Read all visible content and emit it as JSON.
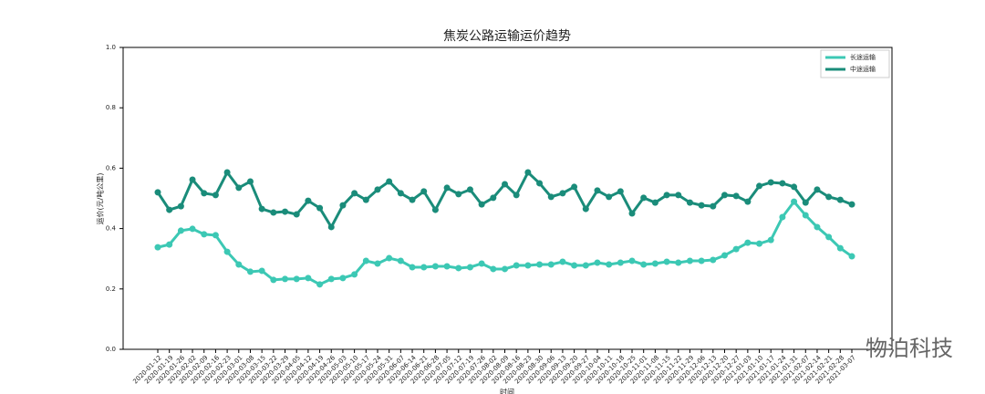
{
  "chart_data": {
    "type": "line",
    "title": "焦炭公路运输运价趋势",
    "ylabel": "运价(元/吨公里)",
    "xlabel": "时间",
    "watermark": "物泊科技",
    "categories": [
      "2020-01-12",
      "2020-01-19",
      "2020-01-26",
      "2020-02-02",
      "2020-02-09",
      "2020-02-16",
      "2020-02-23",
      "2020-03-01",
      "2020-03-08",
      "2020-03-15",
      "2020-03-22",
      "2020-03-29",
      "2020-04-05",
      "2020-04-12",
      "2020-04-19",
      "2020-04-26",
      "2020-05-03",
      "2020-05-10",
      "2020-05-17",
      "2020-05-24",
      "2020-05-31",
      "2020-06-07",
      "2020-06-14",
      "2020-06-21",
      "2020-06-28",
      "2020-07-05",
      "2020-07-12",
      "2020-07-19",
      "2020-07-26",
      "2020-08-02",
      "2020-08-09",
      "2020-08-16",
      "2020-08-23",
      "2020-08-30",
      "2020-09-06",
      "2020-09-13",
      "2020-09-20",
      "2020-09-27",
      "2020-10-04",
      "2020-10-11",
      "2020-10-18",
      "2020-10-25",
      "2020-11-01",
      "2020-11-08",
      "2020-11-15",
      "2020-11-22",
      "2020-11-29",
      "2020-12-06",
      "2020-12-13",
      "2020-12-20",
      "2020-12-27",
      "2021-01-03",
      "2021-01-10",
      "2021-01-17",
      "2021-01-24",
      "2021-01-31",
      "2021-02-07",
      "2021-02-14",
      "2021-02-21",
      "2021-02-28",
      "2021-03-07"
    ],
    "series": [
      {
        "name": "长途运输",
        "color": "#3cc8b4",
        "values": [
          0.338,
          0.347,
          0.393,
          0.399,
          0.381,
          0.378,
          0.323,
          0.281,
          0.257,
          0.26,
          0.23,
          0.233,
          0.233,
          0.236,
          0.215,
          0.233,
          0.236,
          0.248,
          0.293,
          0.284,
          0.302,
          0.293,
          0.272,
          0.272,
          0.275,
          0.275,
          0.269,
          0.272,
          0.284,
          0.266,
          0.266,
          0.278,
          0.278,
          0.281,
          0.281,
          0.29,
          0.278,
          0.278,
          0.287,
          0.281,
          0.287,
          0.293,
          0.281,
          0.284,
          0.29,
          0.287,
          0.293,
          0.293,
          0.296,
          0.311,
          0.332,
          0.353,
          0.35,
          0.362,
          0.438,
          0.489,
          0.444,
          0.405,
          0.372,
          0.335,
          0.308
        ]
      },
      {
        "name": "中途运输",
        "color": "#1a8c7a",
        "values": [
          0.52,
          0.462,
          0.474,
          0.562,
          0.517,
          0.511,
          0.586,
          0.535,
          0.556,
          0.465,
          0.453,
          0.456,
          0.447,
          0.492,
          0.468,
          0.405,
          0.477,
          0.517,
          0.495,
          0.529,
          0.556,
          0.517,
          0.495,
          0.523,
          0.462,
          0.535,
          0.514,
          0.529,
          0.48,
          0.502,
          0.547,
          0.511,
          0.586,
          0.55,
          0.505,
          0.517,
          0.538,
          0.465,
          0.526,
          0.505,
          0.523,
          0.45,
          0.502,
          0.486,
          0.511,
          0.511,
          0.486,
          0.477,
          0.474,
          0.511,
          0.508,
          0.489,
          0.541,
          0.553,
          0.55,
          0.538,
          0.486,
          0.529,
          0.505,
          0.495,
          0.48
        ]
      }
    ],
    "ylim": [
      0,
      1
    ],
    "yticks": [
      {
        "value": 0,
        "label": "0.0"
      },
      {
        "value": 0.2,
        "label": "0.2"
      },
      {
        "value": 0.4,
        "label": "0.4"
      },
      {
        "value": 0.6,
        "label": "0.6"
      },
      {
        "value": 0.8,
        "label": "0.8"
      },
      {
        "value": 1,
        "label": "1.0"
      }
    ],
    "legend": "upper right"
  }
}
